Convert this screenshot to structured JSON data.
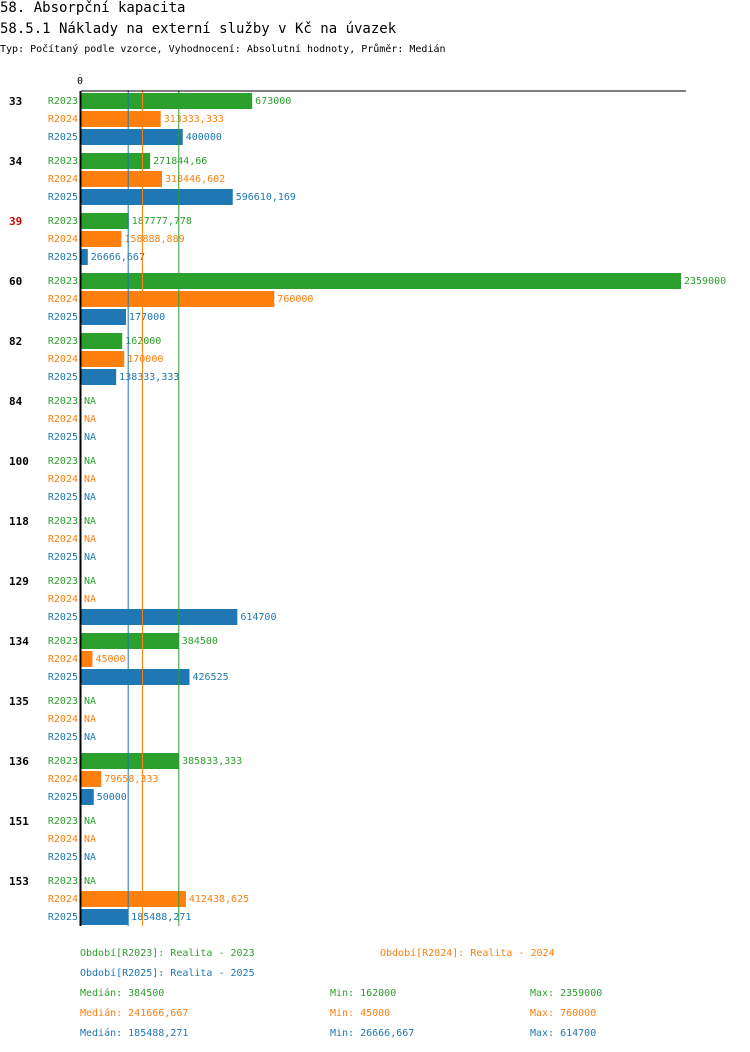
{
  "header": {
    "title": "58. Absorpční kapacita",
    "subtitle": "58.5.1 Náklady na externí služby v Kč na úvazek",
    "meta": "Typ: Počítaný podle vzorce, Vyhodnocení: Absolutní hodnoty, Průměr: Medián"
  },
  "colors": {
    "R2023": "#2ca02c",
    "R2024": "#ff7f0e",
    "R2025": "#1f77b4",
    "highlight": "#cc0000"
  },
  "chart_data": {
    "type": "bar",
    "orientation": "horizontal",
    "axis_zero_label": "0",
    "xlim": [
      0,
      2359000
    ],
    "series_names": [
      "R2023",
      "R2024",
      "R2025"
    ],
    "categories": [
      {
        "id": "33",
        "highlight": false,
        "bars": [
          {
            "s": "R2023",
            "v": 673000,
            "label": "673000"
          },
          {
            "s": "R2024",
            "v": 313333.333,
            "label": "313333,333"
          },
          {
            "s": "R2025",
            "v": 400000,
            "label": "400000"
          }
        ]
      },
      {
        "id": "34",
        "highlight": false,
        "bars": [
          {
            "s": "R2023",
            "v": 271844.66,
            "label": "271844,66"
          },
          {
            "s": "R2024",
            "v": 318446.602,
            "label": "318446,602"
          },
          {
            "s": "R2025",
            "v": 596610.169,
            "label": "596610,169"
          }
        ]
      },
      {
        "id": "39",
        "highlight": true,
        "bars": [
          {
            "s": "R2023",
            "v": 187777.778,
            "label": "187777,778"
          },
          {
            "s": "R2024",
            "v": 158888.889,
            "label": "158888,889"
          },
          {
            "s": "R2025",
            "v": 26666.667,
            "label": "26666,667"
          }
        ]
      },
      {
        "id": "60",
        "highlight": false,
        "bars": [
          {
            "s": "R2023",
            "v": 2359000,
            "label": "2359000"
          },
          {
            "s": "R2024",
            "v": 760000,
            "label": "760000"
          },
          {
            "s": "R2025",
            "v": 177000,
            "label": "177000"
          }
        ]
      },
      {
        "id": "82",
        "highlight": false,
        "bars": [
          {
            "s": "R2023",
            "v": 162000,
            "label": "162000"
          },
          {
            "s": "R2024",
            "v": 170000,
            "label": "170000"
          },
          {
            "s": "R2025",
            "v": 138333.333,
            "label": "138333,333"
          }
        ]
      },
      {
        "id": "84",
        "highlight": false,
        "bars": [
          {
            "s": "R2023",
            "v": null,
            "label": "NA"
          },
          {
            "s": "R2024",
            "v": null,
            "label": "NA"
          },
          {
            "s": "R2025",
            "v": null,
            "label": "NA"
          }
        ]
      },
      {
        "id": "100",
        "highlight": false,
        "bars": [
          {
            "s": "R2023",
            "v": null,
            "label": "NA"
          },
          {
            "s": "R2024",
            "v": null,
            "label": "NA"
          },
          {
            "s": "R2025",
            "v": null,
            "label": "NA"
          }
        ]
      },
      {
        "id": "118",
        "highlight": false,
        "bars": [
          {
            "s": "R2023",
            "v": null,
            "label": "NA"
          },
          {
            "s": "R2024",
            "v": null,
            "label": "NA"
          },
          {
            "s": "R2025",
            "v": null,
            "label": "NA"
          }
        ]
      },
      {
        "id": "129",
        "highlight": false,
        "bars": [
          {
            "s": "R2023",
            "v": null,
            "label": "NA"
          },
          {
            "s": "R2024",
            "v": null,
            "label": "NA"
          },
          {
            "s": "R2025",
            "v": 614700,
            "label": "614700"
          }
        ]
      },
      {
        "id": "134",
        "highlight": false,
        "bars": [
          {
            "s": "R2023",
            "v": 384500,
            "label": "384500"
          },
          {
            "s": "R2024",
            "v": 45000,
            "label": "45000"
          },
          {
            "s": "R2025",
            "v": 426525,
            "label": "426525"
          }
        ]
      },
      {
        "id": "135",
        "highlight": false,
        "bars": [
          {
            "s": "R2023",
            "v": null,
            "label": "NA"
          },
          {
            "s": "R2024",
            "v": null,
            "label": "NA"
          },
          {
            "s": "R2025",
            "v": null,
            "label": "NA"
          }
        ]
      },
      {
        "id": "136",
        "highlight": false,
        "bars": [
          {
            "s": "R2023",
            "v": 385833.333,
            "label": "385833,333"
          },
          {
            "s": "R2024",
            "v": 79658.333,
            "label": "79658,333"
          },
          {
            "s": "R2025",
            "v": 50000,
            "label": "50000"
          }
        ]
      },
      {
        "id": "151",
        "highlight": false,
        "bars": [
          {
            "s": "R2023",
            "v": null,
            "label": "NA"
          },
          {
            "s": "R2024",
            "v": null,
            "label": "NA"
          },
          {
            "s": "R2025",
            "v": null,
            "label": "NA"
          }
        ]
      },
      {
        "id": "153",
        "highlight": false,
        "bars": [
          {
            "s": "R2023",
            "v": null,
            "label": "NA"
          },
          {
            "s": "R2024",
            "v": 412438.625,
            "label": "412438,625"
          },
          {
            "s": "R2025",
            "v": 185488.271,
            "label": "185488,271"
          }
        ]
      }
    ],
    "median_lines": [
      {
        "s": "R2023",
        "v": 384500
      },
      {
        "s": "R2024",
        "v": 241666.667
      },
      {
        "s": "R2025",
        "v": 185488.271
      }
    ]
  },
  "legend": {
    "period_2023": "Období[R2023]: Realita - 2023",
    "period_2024": "Období[R2024]: Realita - 2024",
    "period_2025": "Období[R2025]: Realita - 2025",
    "stats": [
      {
        "median": "Medián: 384500",
        "min": "Min: 162000",
        "max": "Max: 2359000"
      },
      {
        "median": "Medián: 241666,667",
        "min": "Min: 45000",
        "max": "Max: 760000"
      },
      {
        "median": "Medián: 185488,271",
        "min": "Min: 26666,667",
        "max": "Max: 614700"
      }
    ]
  }
}
